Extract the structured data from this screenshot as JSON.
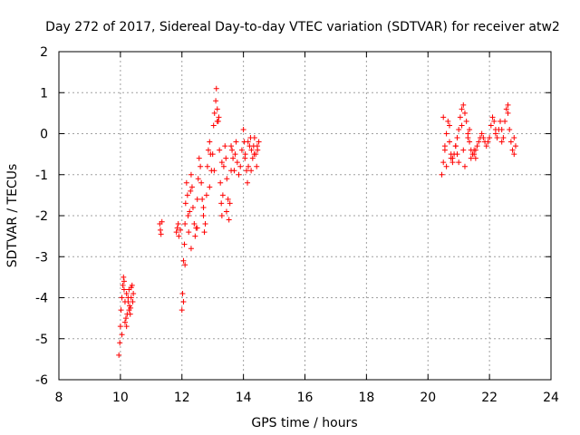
{
  "chart_data": {
    "type": "scatter",
    "title": "Day 272 of 2017, Sidereal Day-to-day VTEC variation (SDTVAR) for receiver atw2",
    "xlabel": "GPS time / hours",
    "ylabel": "SDTVAR / TECUs",
    "xlim": [
      8,
      24
    ],
    "ylim": [
      -6,
      2
    ],
    "xticks": [
      "8",
      "10",
      "12",
      "14",
      "16",
      "18",
      "20",
      "22",
      "24"
    ],
    "yticks": [
      "-6",
      "-5",
      "-4",
      "-3",
      "-2",
      "-1",
      "0",
      "1",
      "2"
    ],
    "grid": true,
    "marker": "+",
    "series_color": "#ff0000",
    "series": [
      {
        "name": "atw2",
        "x": [
          9.95,
          9.98,
          10.0,
          10.02,
          10.05,
          10.08,
          10.1,
          10.12,
          10.15,
          10.18,
          10.2,
          10.22,
          10.25,
          10.28,
          10.3,
          10.32,
          10.35,
          10.38,
          10.4,
          10.42,
          10.12,
          10.2,
          10.28,
          10.35,
          10.05,
          10.15,
          10.25,
          10.33,
          11.28,
          11.3,
          11.32,
          11.35,
          11.82,
          11.85,
          11.88,
          11.9,
          11.95,
          12.0,
          12.02,
          12.05,
          12.08,
          12.1,
          12.12,
          12.15,
          12.18,
          12.2,
          12.22,
          12.25,
          12.28,
          12.3,
          12.33,
          12.36,
          12.4,
          12.43,
          12.46,
          12.5,
          12.53,
          12.56,
          12.6,
          12.63,
          12.66,
          12.7,
          12.73,
          12.76,
          12.8,
          12.83,
          12.86,
          12.9,
          12.93,
          12.96,
          13.0,
          13.03,
          13.06,
          13.1,
          13.12,
          13.15,
          13.18,
          13.2,
          13.22,
          13.25,
          13.28,
          13.3,
          13.33,
          13.36,
          13.4,
          13.43,
          13.46,
          13.5,
          13.53,
          13.56,
          13.6,
          13.63,
          13.66,
          13.7,
          13.73,
          13.76,
          13.8,
          13.85,
          13.9,
          13.95,
          14.0,
          14.03,
          14.06,
          14.1,
          14.13,
          14.16,
          14.2,
          14.23,
          14.26,
          14.3,
          14.33,
          14.36,
          14.4,
          14.43,
          14.46,
          14.5,
          12.05,
          12.1,
          12.3,
          12.5,
          12.7,
          12.9,
          13.05,
          13.15,
          13.3,
          13.45,
          13.6,
          14.05,
          14.15,
          14.25,
          14.35,
          14.45,
          20.45,
          20.5,
          20.55,
          20.6,
          20.65,
          20.7,
          20.75,
          20.8,
          20.85,
          20.9,
          20.95,
          21.0,
          21.05,
          21.1,
          21.15,
          21.2,
          21.25,
          21.3,
          21.35,
          21.4,
          21.45,
          21.5,
          21.55,
          21.6,
          21.65,
          21.7,
          21.75,
          21.8,
          21.85,
          21.9,
          21.95,
          22.0,
          22.05,
          22.1,
          22.15,
          22.2,
          22.25,
          22.3,
          22.35,
          22.4,
          22.45,
          22.5,
          22.55,
          22.6,
          22.65,
          22.7,
          22.75,
          22.8,
          22.85,
          20.5,
          20.6,
          20.7,
          20.8,
          20.9,
          21.0,
          21.1,
          21.2,
          21.3,
          21.4,
          21.5,
          20.55,
          20.75,
          20.95,
          21.15,
          21.35,
          21.55,
          22.2,
          22.4,
          22.6,
          22.8
        ],
        "y": [
          -5.4,
          -5.1,
          -4.7,
          -4.3,
          -4.0,
          -3.7,
          -3.5,
          -3.8,
          -4.1,
          -4.5,
          -4.7,
          -4.4,
          -4.0,
          -3.8,
          -4.2,
          -4.4,
          -4.0,
          -3.7,
          -4.1,
          -3.9,
          -3.6,
          -3.9,
          -4.3,
          -3.75,
          -4.9,
          -4.6,
          -4.1,
          -4.25,
          -2.2,
          -2.35,
          -2.45,
          -2.15,
          -2.4,
          -2.3,
          -2.2,
          -2.5,
          -2.35,
          -4.3,
          -3.9,
          -3.1,
          -2.7,
          -2.2,
          -1.7,
          -1.2,
          -1.5,
          -2.0,
          -2.4,
          -1.9,
          -1.4,
          -1.0,
          -1.3,
          -1.8,
          -2.2,
          -2.5,
          -2.3,
          -1.6,
          -1.1,
          -0.6,
          -0.8,
          -1.2,
          -1.6,
          -2.0,
          -2.4,
          -2.2,
          -1.5,
          -0.8,
          -0.4,
          -0.2,
          -0.5,
          -0.9,
          -0.5,
          0.2,
          0.5,
          0.8,
          1.1,
          0.6,
          0.3,
          0.4,
          -0.4,
          -1.2,
          -1.7,
          -2.0,
          -1.5,
          -0.8,
          -0.3,
          -0.6,
          -1.1,
          -1.6,
          -2.1,
          -1.7,
          -0.9,
          -0.4,
          -0.6,
          -0.9,
          -0.5,
          -0.2,
          -0.7,
          -1.0,
          -0.8,
          -0.4,
          0.1,
          -0.2,
          -0.5,
          -0.9,
          -1.2,
          -0.8,
          -0.3,
          -0.1,
          -0.4,
          -0.6,
          -0.3,
          -0.1,
          -0.5,
          -0.8,
          -0.4,
          -0.2,
          -4.1,
          -3.2,
          -2.8,
          -2.3,
          -1.8,
          -1.3,
          -0.9,
          0.3,
          -0.7,
          -1.9,
          -0.3,
          -0.6,
          -0.2,
          -0.9,
          -0.5,
          -0.3,
          -1.0,
          -0.7,
          -0.4,
          0.0,
          0.3,
          -0.2,
          -0.5,
          -0.7,
          -0.5,
          -0.3,
          -0.1,
          0.1,
          0.4,
          0.6,
          0.7,
          0.5,
          0.3,
          0.0,
          -0.2,
          -0.4,
          -0.5,
          -0.5,
          -0.4,
          -0.3,
          -0.2,
          -0.1,
          0.0,
          -0.1,
          -0.2,
          -0.3,
          -0.2,
          -0.1,
          0.2,
          0.4,
          0.3,
          0.1,
          -0.1,
          0.1,
          0.3,
          0.1,
          -0.1,
          0.3,
          0.6,
          0.5,
          0.1,
          -0.2,
          -0.4,
          -0.5,
          -0.3,
          0.4,
          -0.8,
          0.2,
          -0.6,
          -0.3,
          -0.7,
          0.2,
          -0.8,
          -0.1,
          -0.6,
          -0.4,
          -0.3,
          -0.6,
          -0.5,
          -0.4,
          0.1,
          -0.6,
          0.0,
          -0.2,
          0.7,
          -0.1
        ]
      }
    ]
  }
}
